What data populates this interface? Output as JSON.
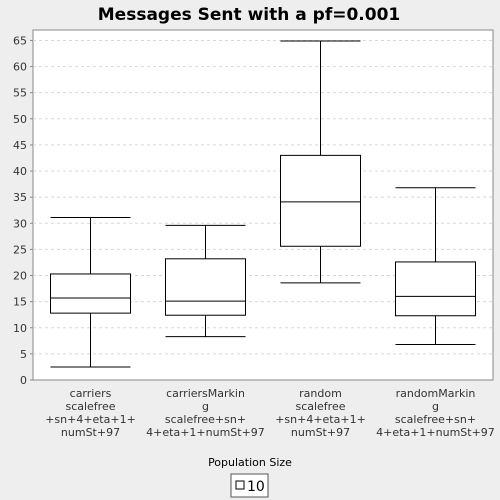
{
  "chart_data": {
    "type": "boxplot",
    "title": "Messages Sent with a pf=0.001",
    "xlabel": "Population Size",
    "ylabel": "",
    "ylim": [
      0,
      67
    ],
    "yticks": [
      0,
      5,
      10,
      15,
      20,
      25,
      30,
      35,
      40,
      45,
      50,
      55,
      60,
      65
    ],
    "grid": true,
    "legend": {
      "position": "bottom",
      "entries": [
        "10"
      ]
    },
    "categories": [
      [
        "carriers",
        "scalefree",
        "+sn+4+eta+1+",
        "numSt+97"
      ],
      [
        "carriersMarkin",
        "g",
        "scalefree+sn+",
        "4+eta+1+numSt+97"
      ],
      [
        "random",
        "scalefree",
        "+sn+4+eta+1+",
        "numSt+97"
      ],
      [
        "randomMarkin",
        "g",
        "scalefree+sn+",
        "4+eta+1+numSt+97"
      ]
    ],
    "series": [
      {
        "name": "10",
        "boxes": [
          {
            "min": 2.5,
            "q1": 12.8,
            "median": 15.7,
            "q3": 20.3,
            "max": 31.1
          },
          {
            "min": 8.3,
            "q1": 12.4,
            "median": 15.1,
            "q3": 23.2,
            "max": 29.6
          },
          {
            "min": 18.6,
            "q1": 25.6,
            "median": 34.1,
            "q3": 43.0,
            "max": 64.9
          },
          {
            "min": 6.8,
            "q1": 12.3,
            "median": 16.0,
            "q3": 22.6,
            "max": 36.8
          }
        ]
      }
    ]
  }
}
